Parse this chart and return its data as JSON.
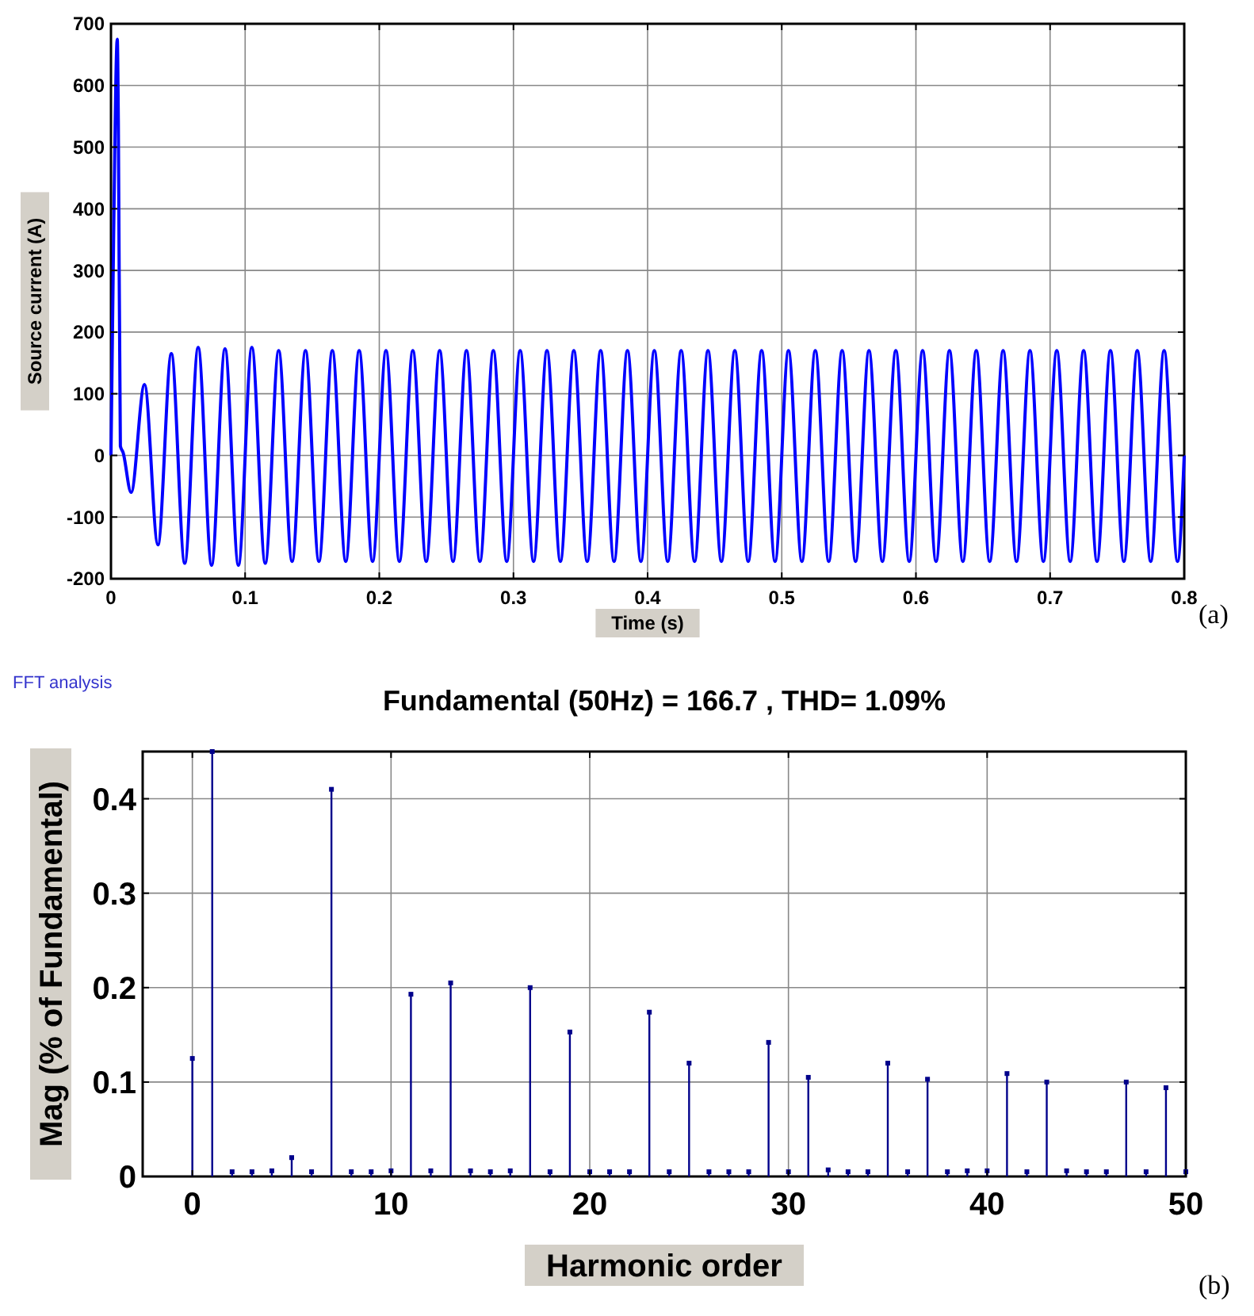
{
  "chart_data": [
    {
      "type": "line",
      "xlabel": "Time (s)",
      "ylabel": "Source current (A)",
      "annotations": [
        "(a)"
      ],
      "x": [
        0,
        0.002,
        0.0047,
        0.0055,
        0.007,
        0.009,
        0.015,
        0.025,
        0.035,
        0.045,
        0.055,
        0.065,
        0.075,
        0.085,
        0.095,
        0.105,
        0.115,
        0.125,
        0.135,
        0.145,
        0.155,
        0.165,
        0.175,
        0.185,
        0.195,
        0.205,
        0.215,
        0.225,
        0.235,
        0.245,
        0.255,
        0.265,
        0.275,
        0.285,
        0.295,
        0.305,
        0.315,
        0.325,
        0.335,
        0.345,
        0.355,
        0.365,
        0.375,
        0.385,
        0.395,
        0.405,
        0.415,
        0.425,
        0.435,
        0.445,
        0.455,
        0.465,
        0.475,
        0.485,
        0.495,
        0.505,
        0.515,
        0.525,
        0.535,
        0.545,
        0.555,
        0.565,
        0.575,
        0.585,
        0.595,
        0.605,
        0.615,
        0.625,
        0.635,
        0.645,
        0.655,
        0.665,
        0.675,
        0.685,
        0.695,
        0.705,
        0.715,
        0.725,
        0.735,
        0.745,
        0.755,
        0.765,
        0.775,
        0.785,
        0.795,
        0.8
      ],
      "series": [
        {
          "color": "#0000ff",
          "values": [
            0,
            360,
            675,
            540,
            15,
            5,
            -60,
            115,
            -145,
            165,
            -175,
            175,
            -178,
            173,
            -178,
            175,
            -175,
            170,
            -172,
            170,
            -172,
            170,
            -172,
            170,
            -172,
            170,
            -172,
            170,
            -172,
            170,
            -172,
            170,
            -172,
            170,
            -172,
            170,
            -172,
            170,
            -172,
            170,
            -172,
            170,
            -172,
            170,
            -172,
            170,
            -172,
            170,
            -172,
            170,
            -172,
            170,
            -172,
            170,
            -172,
            170,
            -172,
            170,
            -172,
            170,
            -172,
            170,
            -172,
            170,
            -172,
            170,
            -172,
            170,
            -172,
            170,
            -172,
            170,
            -172,
            170,
            -172,
            170,
            -172,
            170,
            -172,
            170,
            -172,
            170,
            -172,
            170,
            -172,
            0
          ]
        }
      ],
      "xlim": [
        0,
        0.8
      ],
      "xticks": [
        0,
        0.1,
        0.2,
        0.3,
        0.4,
        0.5,
        0.6,
        0.7,
        0.8
      ],
      "ylim": [
        -200,
        700
      ],
      "yticks": [
        -200,
        -100,
        0,
        100,
        200,
        300,
        400,
        500,
        600,
        700
      ],
      "grid": true,
      "line_style": "solid"
    },
    {
      "type": "lollipop",
      "title": "Fundamental (50Hz) = 166.7 , THD= 1.09%",
      "xlabel": "Harmonic order",
      "ylabel": "Mag (% of Fundamental)",
      "annotations": [
        "FFT analysis",
        "(b)"
      ],
      "x": [
        0,
        1,
        2,
        3,
        4,
        5,
        6,
        7,
        8,
        9,
        10,
        11,
        12,
        13,
        14,
        15,
        16,
        17,
        18,
        19,
        20,
        21,
        22,
        23,
        24,
        25,
        26,
        27,
        28,
        29,
        30,
        31,
        32,
        33,
        34,
        35,
        36,
        37,
        38,
        39,
        40,
        41,
        42,
        43,
        44,
        45,
        46,
        47,
        48,
        49,
        50
      ],
      "series": [
        {
          "color": "#00008b",
          "values": [
            0.125,
            0.45,
            0.005,
            0.005,
            0.006,
            0.02,
            0.005,
            0.41,
            0.005,
            0.005,
            0.006,
            0.193,
            0.006,
            0.205,
            0.006,
            0.005,
            0.006,
            0.2,
            0.005,
            0.153,
            0.005,
            0.005,
            0.005,
            0.174,
            0.005,
            0.12,
            0.005,
            0.005,
            0.005,
            0.142,
            0.005,
            0.105,
            0.007,
            0.005,
            0.005,
            0.12,
            0.005,
            0.103,
            0.005,
            0.006,
            0.006,
            0.109,
            0.005,
            0.1,
            0.006,
            0.005,
            0.005,
            0.1,
            0.005,
            0.094,
            0.005
          ]
        }
      ],
      "xlim": [
        -2.5,
        50
      ],
      "xticks": [
        0,
        10,
        20,
        30,
        40,
        50
      ],
      "ylim": [
        0,
        0.45
      ],
      "yticks": [
        0,
        0.1,
        0.2,
        0.3,
        0.4
      ],
      "grid": true,
      "marker": "square"
    }
  ]
}
